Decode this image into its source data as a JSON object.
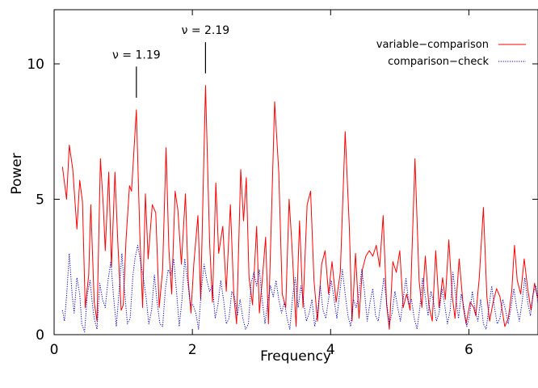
{
  "chart_data": {
    "type": "line",
    "title": "",
    "xlabel": "Frequency",
    "ylabel": "Power",
    "xlim": [
      0,
      7
    ],
    "ylim": [
      0,
      12
    ],
    "x_ticks": [
      0,
      2,
      4,
      6
    ],
    "y_ticks": [
      0,
      5,
      10
    ],
    "grid": false,
    "legend_position": "top-right",
    "series": [
      {
        "name": "variable−comparison",
        "color": "#ff0000",
        "style": "solid",
        "points": [
          [
            0.12,
            6.2
          ],
          [
            0.18,
            5.0
          ],
          [
            0.22,
            7.0
          ],
          [
            0.27,
            6.1
          ],
          [
            0.33,
            3.9
          ],
          [
            0.37,
            5.7
          ],
          [
            0.41,
            4.9
          ],
          [
            0.45,
            1.0
          ],
          [
            0.5,
            2.2
          ],
          [
            0.53,
            4.8
          ],
          [
            0.58,
            1.2
          ],
          [
            0.62,
            0.5
          ],
          [
            0.67,
            6.5
          ],
          [
            0.71,
            4.8
          ],
          [
            0.74,
            3.1
          ],
          [
            0.79,
            6.0
          ],
          [
            0.83,
            2.5
          ],
          [
            0.88,
            6.0
          ],
          [
            0.92,
            3.5
          ],
          [
            0.97,
            0.9
          ],
          [
            1.0,
            1.1
          ],
          [
            1.04,
            3.5
          ],
          [
            1.09,
            5.5
          ],
          [
            1.12,
            5.3
          ],
          [
            1.19,
            8.3
          ],
          [
            1.24,
            3.7
          ],
          [
            1.28,
            1.0
          ],
          [
            1.32,
            5.2
          ],
          [
            1.36,
            2.8
          ],
          [
            1.42,
            4.8
          ],
          [
            1.47,
            4.5
          ],
          [
            1.52,
            1.0
          ],
          [
            1.57,
            2.4
          ],
          [
            1.62,
            6.9
          ],
          [
            1.66,
            3.2
          ],
          [
            1.7,
            1.5
          ],
          [
            1.75,
            5.3
          ],
          [
            1.79,
            4.6
          ],
          [
            1.84,
            2.6
          ],
          [
            1.9,
            5.2
          ],
          [
            1.94,
            2.0
          ],
          [
            1.98,
            0.8
          ],
          [
            2.02,
            2.6
          ],
          [
            2.08,
            4.4
          ],
          [
            2.12,
            1.3
          ],
          [
            2.19,
            9.2
          ],
          [
            2.25,
            3.4
          ],
          [
            2.29,
            1.2
          ],
          [
            2.34,
            5.6
          ],
          [
            2.38,
            3.0
          ],
          [
            2.44,
            4.0
          ],
          [
            2.49,
            1.6
          ],
          [
            2.55,
            4.8
          ],
          [
            2.6,
            1.4
          ],
          [
            2.64,
            0.4
          ],
          [
            2.7,
            6.1
          ],
          [
            2.74,
            4.2
          ],
          [
            2.78,
            5.8
          ],
          [
            2.82,
            2.1
          ],
          [
            2.87,
            1.1
          ],
          [
            2.93,
            4.0
          ],
          [
            2.97,
            0.8
          ],
          [
            3.01,
            2.0
          ],
          [
            3.06,
            3.6
          ],
          [
            3.1,
            0.4
          ],
          [
            3.19,
            8.6
          ],
          [
            3.25,
            6.0
          ],
          [
            3.3,
            1.5
          ],
          [
            3.35,
            1.0
          ],
          [
            3.4,
            5.0
          ],
          [
            3.44,
            3.3
          ],
          [
            3.5,
            0.3
          ],
          [
            3.55,
            4.2
          ],
          [
            3.6,
            1.0
          ],
          [
            3.66,
            4.8
          ],
          [
            3.71,
            5.3
          ],
          [
            3.76,
            2.0
          ],
          [
            3.81,
            0.5
          ],
          [
            3.87,
            2.6
          ],
          [
            3.92,
            3.1
          ],
          [
            3.97,
            1.5
          ],
          [
            4.02,
            2.7
          ],
          [
            4.08,
            1.2
          ],
          [
            4.14,
            2.3
          ],
          [
            4.21,
            7.5
          ],
          [
            4.27,
            4.0
          ],
          [
            4.31,
            0.5
          ],
          [
            4.36,
            3.0
          ],
          [
            4.41,
            0.6
          ],
          [
            4.46,
            2.4
          ],
          [
            4.51,
            2.9
          ],
          [
            4.56,
            3.1
          ],
          [
            4.61,
            2.9
          ],
          [
            4.66,
            3.3
          ],
          [
            4.71,
            2.5
          ],
          [
            4.76,
            4.4
          ],
          [
            4.81,
            1.1
          ],
          [
            4.85,
            0.2
          ],
          [
            4.9,
            2.7
          ],
          [
            4.95,
            2.3
          ],
          [
            5.0,
            3.1
          ],
          [
            5.05,
            1.0
          ],
          [
            5.1,
            1.5
          ],
          [
            5.15,
            0.9
          ],
          [
            5.22,
            6.5
          ],
          [
            5.28,
            2.0
          ],
          [
            5.32,
            1.0
          ],
          [
            5.37,
            2.9
          ],
          [
            5.42,
            1.1
          ],
          [
            5.47,
            0.5
          ],
          [
            5.52,
            3.1
          ],
          [
            5.57,
            1.0
          ],
          [
            5.62,
            2.1
          ],
          [
            5.66,
            1.3
          ],
          [
            5.71,
            3.5
          ],
          [
            5.76,
            1.4
          ],
          [
            5.8,
            0.6
          ],
          [
            5.86,
            2.8
          ],
          [
            5.92,
            1.0
          ],
          [
            5.96,
            0.4
          ],
          [
            6.02,
            1.2
          ],
          [
            6.07,
            1.0
          ],
          [
            6.1,
            0.7
          ],
          [
            6.15,
            2.1
          ],
          [
            6.21,
            4.7
          ],
          [
            6.26,
            1.4
          ],
          [
            6.3,
            0.5
          ],
          [
            6.35,
            1.2
          ],
          [
            6.4,
            1.7
          ],
          [
            6.45,
            1.4
          ],
          [
            6.52,
            0.3
          ],
          [
            6.57,
            0.6
          ],
          [
            6.62,
            1.6
          ],
          [
            6.66,
            3.3
          ],
          [
            6.7,
            2.0
          ],
          [
            6.75,
            1.5
          ],
          [
            6.8,
            2.8
          ],
          [
            6.85,
            1.7
          ],
          [
            6.9,
            0.9
          ],
          [
            6.95,
            1.9
          ],
          [
            7.0,
            1.3
          ]
        ]
      },
      {
        "name": "comparison−check",
        "color": "#0000cc",
        "style": "dotted",
        "points": [
          [
            0.12,
            0.9
          ],
          [
            0.15,
            0.5
          ],
          [
            0.18,
            1.4
          ],
          [
            0.22,
            3.0
          ],
          [
            0.26,
            1.5
          ],
          [
            0.29,
            0.8
          ],
          [
            0.33,
            2.1
          ],
          [
            0.37,
            1.5
          ],
          [
            0.4,
            0.4
          ],
          [
            0.44,
            0.1
          ],
          [
            0.48,
            1.5
          ],
          [
            0.52,
            2.0
          ],
          [
            0.55,
            1.2
          ],
          [
            0.58,
            0.6
          ],
          [
            0.62,
            0.2
          ],
          [
            0.66,
            1.9
          ],
          [
            0.7,
            1.3
          ],
          [
            0.74,
            1.0
          ],
          [
            0.78,
            2.0
          ],
          [
            0.82,
            2.7
          ],
          [
            0.86,
            1.4
          ],
          [
            0.9,
            0.3
          ],
          [
            0.94,
            1.6
          ],
          [
            0.98,
            3.0
          ],
          [
            1.02,
            1.6
          ],
          [
            1.06,
            0.4
          ],
          [
            1.1,
            0.6
          ],
          [
            1.14,
            2.2
          ],
          [
            1.17,
            2.8
          ],
          [
            1.21,
            3.3
          ],
          [
            1.25,
            2.7
          ],
          [
            1.29,
            2.1
          ],
          [
            1.33,
            1.4
          ],
          [
            1.37,
            0.4
          ],
          [
            1.41,
            0.9
          ],
          [
            1.45,
            2.2
          ],
          [
            1.49,
            1.2
          ],
          [
            1.53,
            0.4
          ],
          [
            1.57,
            0.3
          ],
          [
            1.61,
            1.7
          ],
          [
            1.65,
            2.4
          ],
          [
            1.69,
            2.2
          ],
          [
            1.73,
            2.8
          ],
          [
            1.77,
            1.6
          ],
          [
            1.81,
            0.3
          ],
          [
            1.85,
            1.3
          ],
          [
            1.89,
            2.8
          ],
          [
            1.93,
            2.0
          ],
          [
            1.97,
            1.1
          ],
          [
            2.01,
            1.1
          ],
          [
            2.05,
            0.8
          ],
          [
            2.09,
            0.2
          ],
          [
            2.13,
            1.7
          ],
          [
            2.17,
            2.6
          ],
          [
            2.21,
            2.0
          ],
          [
            2.25,
            1.6
          ],
          [
            2.29,
            1.8
          ],
          [
            2.33,
            0.6
          ],
          [
            2.37,
            1.1
          ],
          [
            2.41,
            2.0
          ],
          [
            2.45,
            1.3
          ],
          [
            2.49,
            0.4
          ],
          [
            2.53,
            0.6
          ],
          [
            2.57,
            1.6
          ],
          [
            2.61,
            1.4
          ],
          [
            2.65,
            0.7
          ],
          [
            2.69,
            1.3
          ],
          [
            2.73,
            0.6
          ],
          [
            2.77,
            0.2
          ],
          [
            2.81,
            0.4
          ],
          [
            2.85,
            1.9
          ],
          [
            2.89,
            2.3
          ],
          [
            2.93,
            1.8
          ],
          [
            2.97,
            2.4
          ],
          [
            3.01,
            1.3
          ],
          [
            3.05,
            0.4
          ],
          [
            3.09,
            1.2
          ],
          [
            3.13,
            1.8
          ],
          [
            3.17,
            1.4
          ],
          [
            3.21,
            2.0
          ],
          [
            3.25,
            1.3
          ],
          [
            3.29,
            0.8
          ],
          [
            3.33,
            1.2
          ],
          [
            3.37,
            0.6
          ],
          [
            3.41,
            0.2
          ],
          [
            3.45,
            1.4
          ],
          [
            3.49,
            2.1
          ],
          [
            3.53,
            1.0
          ],
          [
            3.57,
            1.8
          ],
          [
            3.61,
            1.2
          ],
          [
            3.65,
            0.5
          ],
          [
            3.69,
            0.8
          ],
          [
            3.73,
            1.3
          ],
          [
            3.77,
            0.3
          ],
          [
            3.81,
            0.8
          ],
          [
            3.85,
            1.8
          ],
          [
            3.89,
            0.9
          ],
          [
            3.93,
            0.6
          ],
          [
            3.97,
            1.3
          ],
          [
            4.01,
            2.0
          ],
          [
            4.05,
            1.3
          ],
          [
            4.09,
            0.6
          ],
          [
            4.13,
            1.5
          ],
          [
            4.17,
            2.4
          ],
          [
            4.21,
            1.5
          ],
          [
            4.25,
            0.7
          ],
          [
            4.29,
            0.3
          ],
          [
            4.33,
            1.3
          ],
          [
            4.37,
            1.0
          ],
          [
            4.41,
            1.5
          ],
          [
            4.45,
            2.4
          ],
          [
            4.49,
            1.6
          ],
          [
            4.53,
            0.5
          ],
          [
            4.57,
            1.2
          ],
          [
            4.61,
            1.7
          ],
          [
            4.65,
            0.7
          ],
          [
            4.69,
            0.5
          ],
          [
            4.73,
            1.3
          ],
          [
            4.77,
            2.1
          ],
          [
            4.81,
            1.2
          ],
          [
            4.85,
            0.4
          ],
          [
            4.89,
            0.8
          ],
          [
            4.93,
            1.6
          ],
          [
            4.97,
            1.0
          ],
          [
            5.01,
            0.5
          ],
          [
            5.05,
            1.3
          ],
          [
            5.09,
            2.1
          ],
          [
            5.13,
            1.1
          ],
          [
            5.17,
            1.3
          ],
          [
            5.21,
            0.6
          ],
          [
            5.25,
            0.2
          ],
          [
            5.29,
            1.0
          ],
          [
            5.33,
            2.1
          ],
          [
            5.37,
            1.4
          ],
          [
            5.41,
            0.7
          ],
          [
            5.45,
            1.6
          ],
          [
            5.49,
            1.2
          ],
          [
            5.53,
            0.5
          ],
          [
            5.57,
            0.8
          ],
          [
            5.61,
            1.7
          ],
          [
            5.65,
            1.1
          ],
          [
            5.69,
            0.4
          ],
          [
            5.73,
            0.9
          ],
          [
            5.77,
            2.3
          ],
          [
            5.81,
            1.4
          ],
          [
            5.85,
            0.6
          ],
          [
            5.89,
            1.5
          ],
          [
            5.93,
            1.0
          ],
          [
            5.97,
            0.3
          ],
          [
            6.01,
            0.7
          ],
          [
            6.05,
            1.6
          ],
          [
            6.09,
            0.9
          ],
          [
            6.13,
            0.5
          ],
          [
            6.17,
            1.3
          ],
          [
            6.21,
            0.4
          ],
          [
            6.25,
            0.2
          ],
          [
            6.29,
            1.0
          ],
          [
            6.33,
            1.8
          ],
          [
            6.37,
            1.0
          ],
          [
            6.41,
            0.4
          ],
          [
            6.45,
            0.6
          ],
          [
            6.49,
            1.3
          ],
          [
            6.53,
            0.9
          ],
          [
            6.57,
            0.4
          ],
          [
            6.61,
            1.0
          ],
          [
            6.65,
            1.7
          ],
          [
            6.69,
            1.0
          ],
          [
            6.73,
            0.5
          ],
          [
            6.77,
            1.2
          ],
          [
            6.81,
            2.1
          ],
          [
            6.85,
            1.2
          ],
          [
            6.89,
            0.7
          ],
          [
            6.93,
            1.5
          ],
          [
            6.97,
            1.8
          ],
          [
            7.0,
            1.1
          ]
        ]
      }
    ],
    "annotations": [
      {
        "label": "ν = 1.19",
        "x": 1.19,
        "y": 8.3
      },
      {
        "label": "ν = 2.19",
        "x": 2.19,
        "y": 9.2
      }
    ]
  }
}
